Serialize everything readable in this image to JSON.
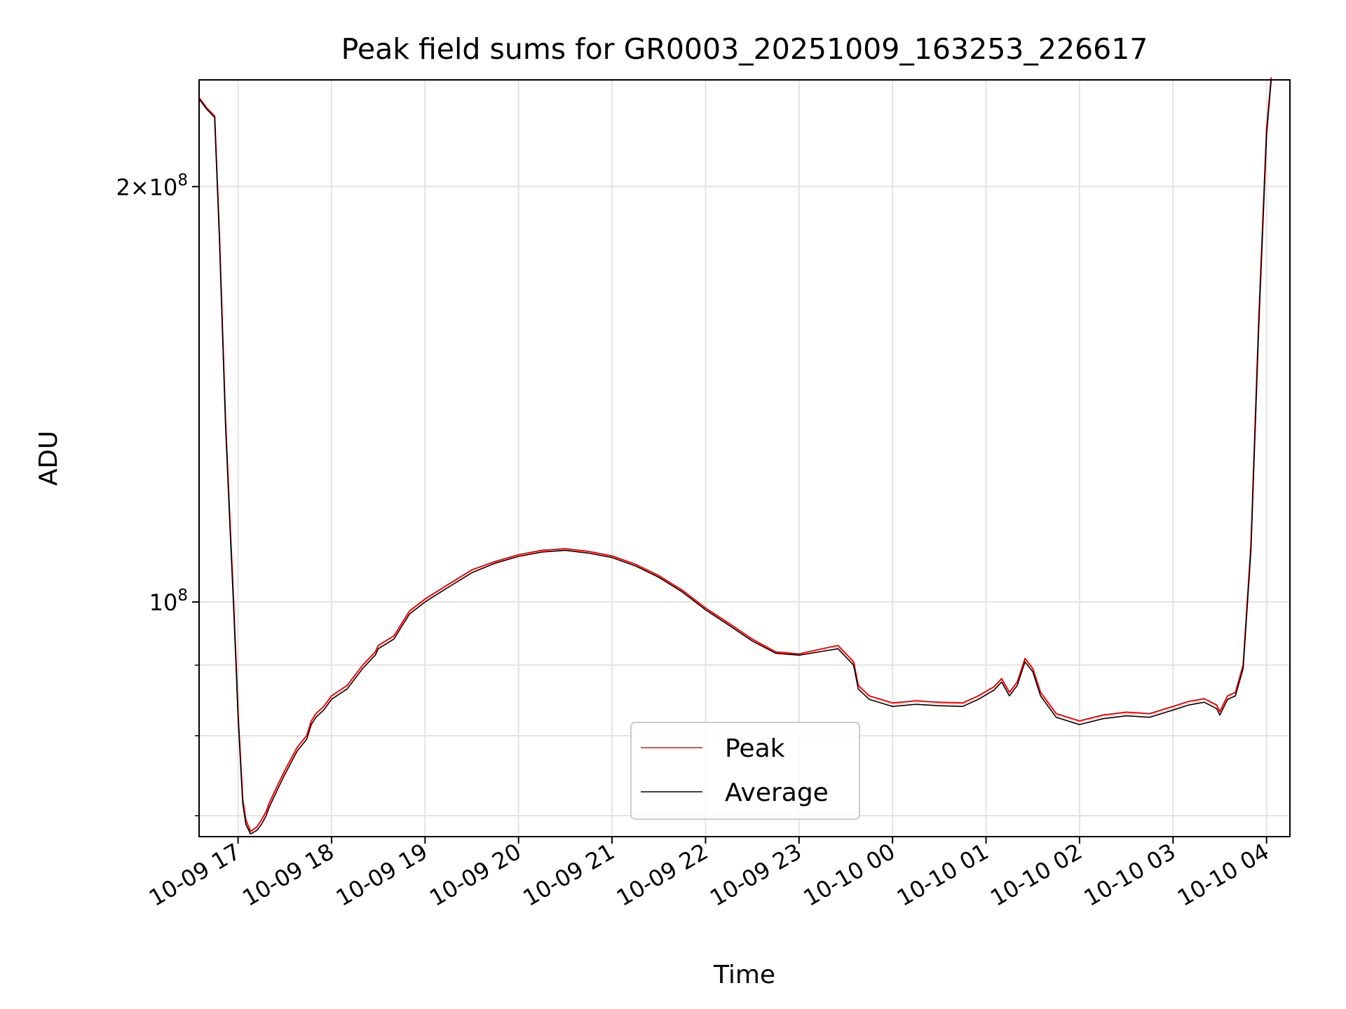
{
  "chart_data": {
    "type": "line",
    "title": "Peak field sums for GR0003_20251009_163253_226617",
    "xlabel": "Time",
    "ylabel": "ADU",
    "yscale": "log",
    "grid": true,
    "legend_position": "lower-center",
    "xlim": [
      "2025-10-09 16:35",
      "2025-10-10 04:15"
    ],
    "ylim": [
      67600000,
      239000000
    ],
    "x_ticks": [
      {
        "x": "2025-10-09 17:00",
        "label": "10-09 17"
      },
      {
        "x": "2025-10-09 18:00",
        "label": "10-09 18"
      },
      {
        "x": "2025-10-09 19:00",
        "label": "10-09 19"
      },
      {
        "x": "2025-10-09 20:00",
        "label": "10-09 20"
      },
      {
        "x": "2025-10-09 21:00",
        "label": "10-09 21"
      },
      {
        "x": "2025-10-09 22:00",
        "label": "10-09 22"
      },
      {
        "x": "2025-10-09 23:00",
        "label": "10-09 23"
      },
      {
        "x": "2025-10-10 00:00",
        "label": "10-10 00"
      },
      {
        "x": "2025-10-10 01:00",
        "label": "10-10 01"
      },
      {
        "x": "2025-10-10 02:00",
        "label": "10-10 02"
      },
      {
        "x": "2025-10-10 03:00",
        "label": "10-10 03"
      },
      {
        "x": "2025-10-10 04:00",
        "label": "10-10 04"
      }
    ],
    "y_ticks_major": [
      {
        "value": 100000000,
        "base": "10",
        "exp": "8"
      },
      {
        "value": 200000000,
        "mantissa": "2",
        "base": "10",
        "exp": "8"
      }
    ],
    "y_ticks_minor": [
      70000000,
      80000000,
      90000000
    ],
    "series": [
      {
        "name": "Peak",
        "color": "#ff0000",
        "x": [
          "2025-10-09 16:35",
          "2025-10-09 16:40",
          "2025-10-09 16:45",
          "2025-10-09 16:48",
          "2025-10-09 16:52",
          "2025-10-09 16:55",
          "2025-10-09 16:57",
          "2025-10-09 16:59",
          "2025-10-09 17:00",
          "2025-10-09 17:03",
          "2025-10-09 17:05",
          "2025-10-09 17:08",
          "2025-10-09 17:12",
          "2025-10-09 17:15",
          "2025-10-09 17:18",
          "2025-10-09 17:20",
          "2025-10-09 17:25",
          "2025-10-09 17:30",
          "2025-10-09 17:38",
          "2025-10-09 17:44",
          "2025-10-09 17:47",
          "2025-10-09 17:50",
          "2025-10-09 17:55",
          "2025-10-09 18:00",
          "2025-10-09 18:10",
          "2025-10-09 18:15",
          "2025-10-09 18:20",
          "2025-10-09 18:28",
          "2025-10-09 18:30",
          "2025-10-09 18:40",
          "2025-10-09 18:45",
          "2025-10-09 18:50",
          "2025-10-09 19:00",
          "2025-10-09 19:15",
          "2025-10-09 19:30",
          "2025-10-09 19:45",
          "2025-10-09 20:00",
          "2025-10-09 20:15",
          "2025-10-09 20:30",
          "2025-10-09 20:45",
          "2025-10-09 21:00",
          "2025-10-09 21:15",
          "2025-10-09 21:30",
          "2025-10-09 21:45",
          "2025-10-09 22:00",
          "2025-10-09 22:15",
          "2025-10-09 22:30",
          "2025-10-09 22:45",
          "2025-10-09 23:00",
          "2025-10-09 23:15",
          "2025-10-09 23:25",
          "2025-10-09 23:35",
          "2025-10-09 23:38",
          "2025-10-09 23:45",
          "2025-10-10 00:00",
          "2025-10-10 00:15",
          "2025-10-10 00:30",
          "2025-10-10 00:45",
          "2025-10-10 00:55",
          "2025-10-10 01:05",
          "2025-10-10 01:10",
          "2025-10-10 01:15",
          "2025-10-10 01:20",
          "2025-10-10 01:25",
          "2025-10-10 01:30",
          "2025-10-10 01:35",
          "2025-10-10 01:45",
          "2025-10-10 02:00",
          "2025-10-10 02:15",
          "2025-10-10 02:30",
          "2025-10-10 02:45",
          "2025-10-10 03:00",
          "2025-10-10 03:10",
          "2025-10-10 03:20",
          "2025-10-10 03:28",
          "2025-10-10 03:30",
          "2025-10-10 03:35",
          "2025-10-10 03:40",
          "2025-10-10 03:45",
          "2025-10-10 03:50",
          "2025-10-10 03:55",
          "2025-10-10 04:00",
          "2025-10-10 04:03"
        ],
        "values": [
          232000000,
          228000000,
          225000000,
          185000000,
          135000000,
          113000000,
          101000000,
          89000000,
          83000000,
          72000000,
          69500000,
          68200000,
          68700000,
          69500000,
          70500000,
          71500000,
          73500000,
          75500000,
          78500000,
          80000000,
          82000000,
          83000000,
          84000000,
          85500000,
          87000000,
          88500000,
          90000000,
          92000000,
          93000000,
          94500000,
          96500000,
          98500000,
          100500000,
          103000000,
          105500000,
          107000000,
          108200000,
          109000000,
          109300000,
          108800000,
          108000000,
          106500000,
          104500000,
          102000000,
          99000000,
          96500000,
          94000000,
          92000000,
          91700000,
          92500000,
          93000000,
          90500000,
          87000000,
          85500000,
          84500000,
          84800000,
          84600000,
          84500000,
          85500000,
          86800000,
          88000000,
          86000000,
          87500000,
          91000000,
          89500000,
          86000000,
          83000000,
          82000000,
          82800000,
          83200000,
          83000000,
          84000000,
          84700000,
          85100000,
          84200000,
          83300000,
          85500000,
          86000000,
          90000000,
          110000000,
          160000000,
          220000000,
          240000000
        ]
      },
      {
        "name": "Average",
        "color": "#000000",
        "x": [
          "2025-10-09 16:35",
          "2025-10-09 16:40",
          "2025-10-09 16:45",
          "2025-10-09 16:48",
          "2025-10-09 16:52",
          "2025-10-09 16:55",
          "2025-10-09 16:57",
          "2025-10-09 16:59",
          "2025-10-09 17:00",
          "2025-10-09 17:03",
          "2025-10-09 17:05",
          "2025-10-09 17:08",
          "2025-10-09 17:12",
          "2025-10-09 17:15",
          "2025-10-09 17:18",
          "2025-10-09 17:20",
          "2025-10-09 17:25",
          "2025-10-09 17:30",
          "2025-10-09 17:38",
          "2025-10-09 17:44",
          "2025-10-09 17:47",
          "2025-10-09 17:50",
          "2025-10-09 17:55",
          "2025-10-09 18:00",
          "2025-10-09 18:10",
          "2025-10-09 18:15",
          "2025-10-09 18:20",
          "2025-10-09 18:28",
          "2025-10-09 18:30",
          "2025-10-09 18:40",
          "2025-10-09 18:45",
          "2025-10-09 18:50",
          "2025-10-09 19:00",
          "2025-10-09 19:15",
          "2025-10-09 19:30",
          "2025-10-09 19:45",
          "2025-10-09 20:00",
          "2025-10-09 20:15",
          "2025-10-09 20:30",
          "2025-10-09 20:45",
          "2025-10-09 21:00",
          "2025-10-09 21:15",
          "2025-10-09 21:30",
          "2025-10-09 21:45",
          "2025-10-09 22:00",
          "2025-10-09 22:15",
          "2025-10-09 22:30",
          "2025-10-09 22:45",
          "2025-10-09 23:00",
          "2025-10-09 23:15",
          "2025-10-09 23:25",
          "2025-10-09 23:35",
          "2025-10-09 23:38",
          "2025-10-09 23:45",
          "2025-10-10 00:00",
          "2025-10-10 00:15",
          "2025-10-10 00:30",
          "2025-10-10 00:45",
          "2025-10-10 00:55",
          "2025-10-10 01:05",
          "2025-10-10 01:10",
          "2025-10-10 01:15",
          "2025-10-10 01:20",
          "2025-10-10 01:25",
          "2025-10-10 01:30",
          "2025-10-10 01:35",
          "2025-10-10 01:45",
          "2025-10-10 02:00",
          "2025-10-10 02:15",
          "2025-10-10 02:30",
          "2025-10-10 02:45",
          "2025-10-10 03:00",
          "2025-10-10 03:10",
          "2025-10-10 03:20",
          "2025-10-10 03:28",
          "2025-10-10 03:30",
          "2025-10-10 03:35",
          "2025-10-10 03:40",
          "2025-10-10 03:45",
          "2025-10-10 03:50",
          "2025-10-10 03:55",
          "2025-10-10 04:00",
          "2025-10-10 04:03"
        ],
        "values": [
          231500000,
          227500000,
          224500000,
          184000000,
          134000000,
          112000000,
          100000000,
          88500000,
          82500000,
          71500000,
          69000000,
          67900000,
          68300000,
          69000000,
          70000000,
          71000000,
          73000000,
          75000000,
          78000000,
          79500000,
          81500000,
          82500000,
          83500000,
          85000000,
          86500000,
          88000000,
          89500000,
          91500000,
          92500000,
          94000000,
          96000000,
          98000000,
          100000000,
          102500000,
          105000000,
          106700000,
          107900000,
          108700000,
          109000000,
          108500000,
          107700000,
          106200000,
          104200000,
          101700000,
          98700000,
          96200000,
          93700000,
          91800000,
          91500000,
          92100000,
          92500000,
          90000000,
          86500000,
          85000000,
          84000000,
          84300000,
          84100000,
          84000000,
          85000000,
          86300000,
          87500000,
          85500000,
          87000000,
          90500000,
          89000000,
          85500000,
          82500000,
          81500000,
          82300000,
          82700000,
          82500000,
          83500000,
          84200000,
          84600000,
          83700000,
          82800000,
          85000000,
          85500000,
          89500000,
          109000000,
          158000000,
          218000000,
          239000000
        ]
      }
    ]
  }
}
